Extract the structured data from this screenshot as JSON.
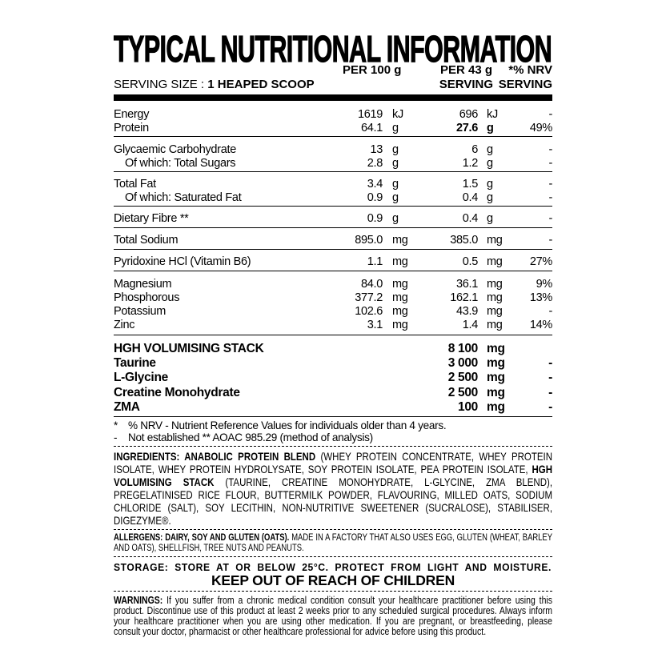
{
  "title": "TYPICAL NUTRITIONAL INFORMATION",
  "header": {
    "per_100": "PER 100 g",
    "per_serving": "PER 43 g",
    "nrv": "*% NRV",
    "serving_size_label": "SERVING SIZE : ",
    "serving_size_value": "1 HEAPED SCOOP",
    "serving_col": "SERVING",
    "nrv_serving_col": "SERVING"
  },
  "groups": [
    [
      {
        "name": "Energy",
        "v1": "1619",
        "u1": "kJ",
        "v2": "696",
        "u2": "kJ",
        "nrv": "-"
      },
      {
        "name": "Protein",
        "v1": "64.1",
        "u1": "g",
        "v2": "27.6",
        "u2": "g",
        "nrv": "49%",
        "bold_serving": true
      }
    ],
    [
      {
        "name": "Glycaemic Carbohydrate",
        "v1": "13",
        "u1": "g",
        "v2": "6",
        "u2": "g",
        "nrv": "-"
      },
      {
        "name": "Of which: Total Sugars",
        "v1": "2.8",
        "u1": "g",
        "v2": "1.2",
        "u2": "g",
        "nrv": "-",
        "indent": true
      }
    ],
    [
      {
        "name": "Total Fat",
        "v1": "3.4",
        "u1": "g",
        "v2": "1.5",
        "u2": "g",
        "nrv": "-"
      },
      {
        "name": "Of which: Saturated Fat",
        "v1": "0.9",
        "u1": "g",
        "v2": "0.4",
        "u2": "g",
        "nrv": "-",
        "indent": true
      }
    ],
    [
      {
        "name": "Dietary Fibre **",
        "v1": "0.9",
        "u1": "g",
        "v2": "0.4",
        "u2": "g",
        "nrv": "-"
      }
    ],
    [
      {
        "name": "Total Sodium",
        "v1": "895.0",
        "u1": "mg",
        "v2": "385.0",
        "u2": "mg",
        "nrv": "-"
      }
    ],
    [
      {
        "name": "Pyridoxine HCl (Vitamin B6)",
        "v1": "1.1",
        "u1": "mg",
        "v2": "0.5",
        "u2": "mg",
        "nrv": "27%"
      }
    ],
    [
      {
        "name": "Magnesium",
        "v1": "84.0",
        "u1": "mg",
        "v2": "36.1",
        "u2": "mg",
        "nrv": "9%"
      },
      {
        "name": "Phosphorous",
        "v1": "377.2",
        "u1": "mg",
        "v2": "162.1",
        "u2": "mg",
        "nrv": "13%"
      },
      {
        "name": "Potassium",
        "v1": "102.6",
        "u1": "mg",
        "v2": "43.9",
        "u2": "mg",
        "nrv": "-"
      },
      {
        "name": "Zinc",
        "v1": "3.1",
        "u1": "mg",
        "v2": "1.4",
        "u2": "mg",
        "nrv": "14%"
      }
    ]
  ],
  "stack": [
    {
      "name": "HGH VOLUMISING STACK",
      "v2": "8 100",
      "u2": "mg",
      "nrv": ""
    },
    {
      "name": "Taurine",
      "v2": "3 000",
      "u2": "mg",
      "nrv": "-"
    },
    {
      "name": "L-Glycine",
      "v2": "2 500",
      "u2": "mg",
      "nrv": "-"
    },
    {
      "name": "Creatine Monohydrate",
      "v2": "2 500",
      "u2": "mg",
      "nrv": "-"
    },
    {
      "name": "ZMA",
      "v2": "100",
      "u2": "mg",
      "nrv": "-"
    }
  ],
  "footnotes": [
    {
      "mark": "*",
      "text": "% NRV - Nutrient Reference Values for individuals older than 4 years."
    },
    {
      "mark": "-",
      "text": "Not established ** AOAC 985.29 (method of analysis)"
    }
  ],
  "ingredients": {
    "label": "INGREDIENTS: ANABOLIC PROTEIN BLEND",
    "text1": " (WHEY PROTEIN CONCENTRATE, WHEY PROTEIN ISOLATE, WHEY PROTEIN HYDROLYSATE, SOY PROTEIN ISOLATE, PEA PROTEIN ISOLATE, ",
    "label2": "HGH VOLUMISING STACK",
    "text2": " (TAURINE, CREATINE MONOHYDRATE, L-GLYCINE, ZMA BLEND), PREGELATINISED RICE FLOUR, BUTTERMILK POWDER, FLAVOURING, MILLED OATS, SODIUM CHLORIDE (SALT), SOY LECITHIN, NON-NUTRITIVE SWEETENER (SUCRALOSE), STABILISER, DIGEZYME®."
  },
  "allergens": {
    "label": "ALLERGENS: DAIRY, SOY AND GLUTEN (OATS).",
    "text": " MADE IN A FACTORY THAT ALSO USES EGG, GLUTEN (WHEAT, BARLEY AND OATS), SHELLFISH, TREE NUTS AND PEANUTS."
  },
  "storage": "STORAGE: STORE AT OR BELOW 25°C. PROTECT FROM LIGHT AND MOISTURE.",
  "keep_out": "KEEP OUT OF REACH OF CHILDREN",
  "warnings": {
    "label": "WARNINGS:",
    "text": " If you suffer from a chronic medical condition consult your healthcare practitioner before using this product. Discontinue use of this product at least 2 weeks prior to any scheduled surgical procedures. Always inform your healthcare practitioner when you are using other medication. If you are pregnant, or breastfeeding, please consult your doctor, pharmacist or other healthcare professional for advice before using this product."
  }
}
